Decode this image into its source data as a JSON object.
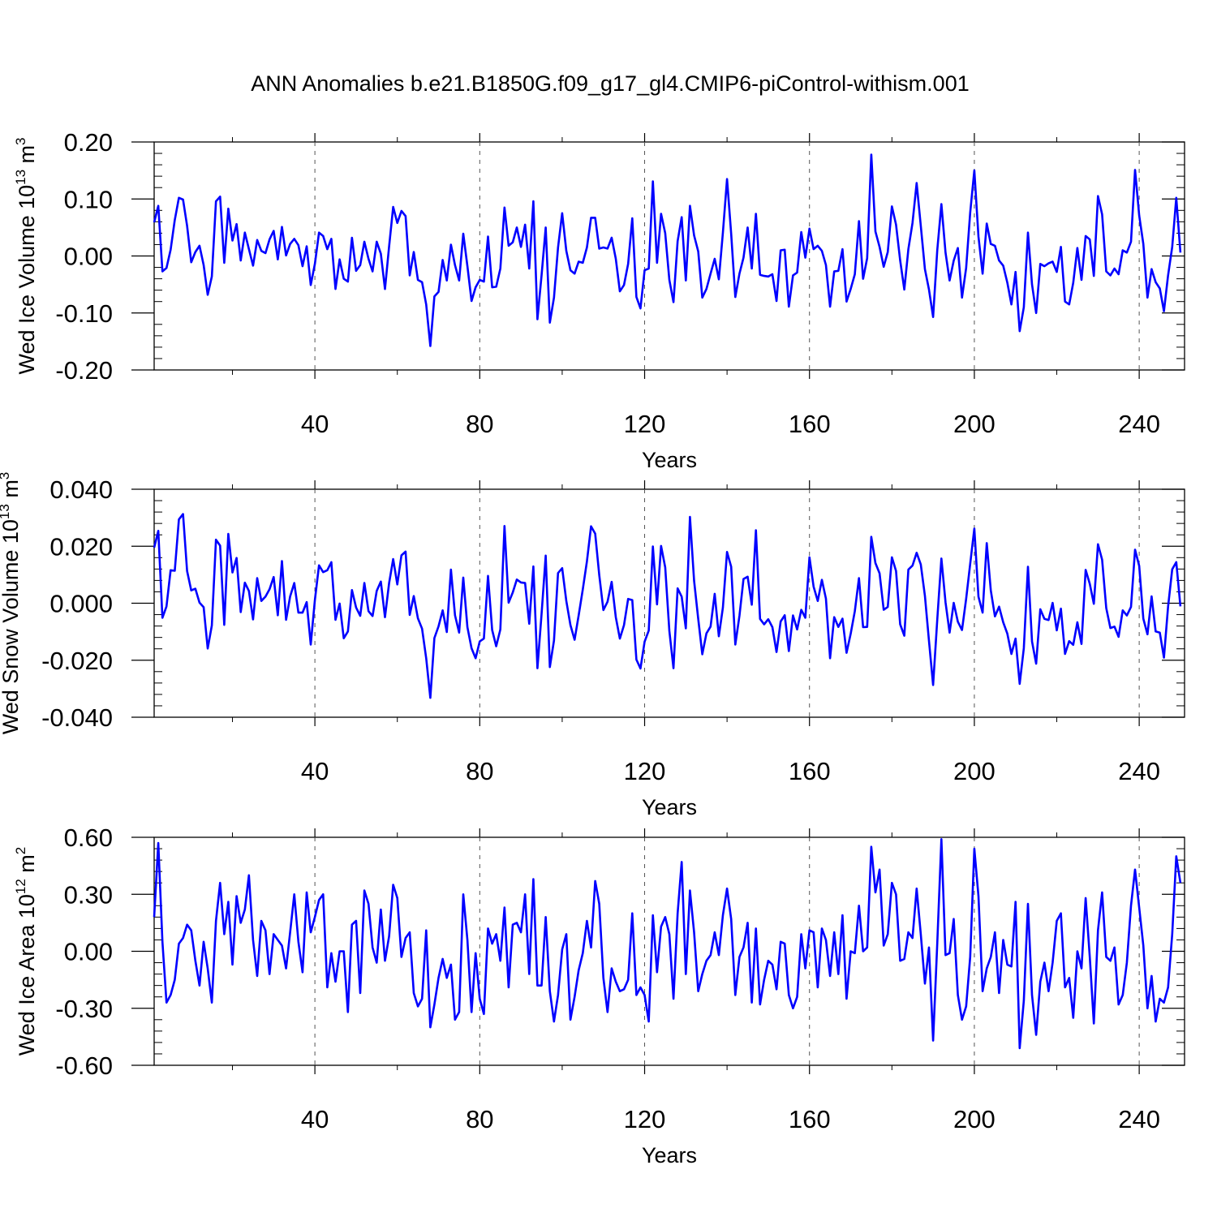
{
  "title": "ANN Anomalies b.e21.B1850G.f09_g17_gl4.CMIP6-piControl-withism.001",
  "line_color": "#0000ff",
  "chart_data": [
    {
      "type": "line",
      "ylabel": "Wed Ice Volume 10",
      "ylabel_exp": "13",
      "ylabel_unit": "m",
      "ylabel_unit_exp": "3",
      "xlabel": "Years",
      "xlim": [
        1,
        251
      ],
      "ylim": [
        -0.2,
        0.2
      ],
      "xticks": [
        40,
        80,
        120,
        160,
        200,
        240
      ],
      "yticks": [
        -0.2,
        -0.1,
        0.0,
        0.1,
        0.2
      ],
      "ytick_labels": [
        "-0.20",
        "-0.10",
        "0.00",
        "0.10",
        "0.20"
      ],
      "series": [
        {
          "values": [
            0.059,
            0.088,
            -0.027,
            -0.021,
            0.011,
            0.063,
            0.102,
            0.099,
            0.053,
            -0.011,
            0.007,
            0.018,
            -0.016,
            -0.068,
            -0.036,
            0.096,
            0.104,
            -0.012,
            0.083,
            0.027,
            0.056,
            -0.008,
            0.041,
            0.012,
            -0.017,
            0.028,
            0.009,
            0.005,
            0.029,
            0.044,
            -0.006,
            0.051,
            0.001,
            0.021,
            0.03,
            0.019,
            -0.018,
            0.017,
            -0.051,
            -0.014,
            0.041,
            0.035,
            0.012,
            0.03,
            -0.058,
            -0.006,
            -0.04,
            -0.045,
            0.032,
            -0.026,
            -0.016,
            0.025,
            -0.005,
            -0.027,
            0.025,
            0.004,
            -0.058,
            0.017,
            0.086,
            0.058,
            0.079,
            0.07,
            -0.034,
            0.007,
            -0.042,
            -0.046,
            -0.085,
            -0.158,
            -0.071,
            -0.063,
            -0.007,
            -0.043,
            0.02,
            -0.016,
            -0.043,
            0.039,
            -0.018,
            -0.079,
            -0.055,
            -0.042,
            -0.045,
            0.034,
            -0.055,
            -0.054,
            -0.022,
            0.085,
            0.018,
            0.024,
            0.05,
            0.016,
            0.055,
            -0.022,
            0.096,
            -0.111,
            -0.034,
            0.05,
            -0.117,
            -0.073,
            0.015,
            0.075,
            0.009,
            -0.025,
            -0.031,
            -0.01,
            -0.012,
            0.015,
            0.067,
            0.067,
            0.013,
            0.015,
            0.013,
            0.032,
            -0.005,
            -0.062,
            -0.051,
            -0.014,
            0.066,
            -0.072,
            -0.092,
            -0.025,
            -0.022,
            0.131,
            -0.012,
            0.074,
            0.04,
            -0.042,
            -0.081,
            0.026,
            0.068,
            -0.043,
            0.088,
            0.036,
            0.008,
            -0.073,
            -0.058,
            -0.031,
            -0.005,
            -0.041,
            0.041,
            0.135,
            0.039,
            -0.072,
            -0.031,
            -0.003,
            0.05,
            -0.022,
            0.074,
            -0.033,
            -0.035,
            -0.036,
            -0.032,
            -0.079,
            0.01,
            0.011,
            -0.089,
            -0.034,
            -0.029,
            0.042,
            -0.003,
            0.048,
            0.012,
            0.018,
            0.009,
            -0.016,
            -0.089,
            -0.027,
            -0.026,
            0.012,
            -0.08,
            -0.058,
            -0.032,
            0.061,
            -0.04,
            -0.004,
            0.178,
            0.043,
            0.016,
            -0.019,
            0.007,
            0.087,
            0.055,
            -0.008,
            -0.059,
            0.012,
            0.058,
            0.128,
            0.053,
            -0.023,
            -0.059,
            -0.107,
            0.01,
            0.091,
            0.006,
            -0.043,
            -0.008,
            0.014,
            -0.073,
            -0.021,
            0.076,
            0.15,
            0.034,
            -0.031,
            0.057,
            0.021,
            0.018,
            -0.008,
            -0.017,
            -0.047,
            -0.085,
            -0.028,
            -0.132,
            -0.09,
            0.041,
            -0.05,
            -0.1,
            -0.014,
            -0.018,
            -0.013,
            -0.01,
            -0.028,
            0.016,
            -0.08,
            -0.085,
            -0.047,
            0.014,
            -0.042,
            0.035,
            0.029,
            -0.035,
            0.105,
            0.073,
            -0.027,
            -0.034,
            -0.022,
            -0.032,
            0.01,
            0.006,
            0.025,
            0.151,
            0.071,
            0.021,
            -0.073,
            -0.023,
            -0.046,
            -0.057,
            -0.097,
            -0.034,
            0.016,
            0.102,
            0.006
          ]
        }
      ]
    },
    {
      "type": "line",
      "ylabel": "Wed Snow Volume 10",
      "ylabel_exp": "13",
      "ylabel_unit": "m",
      "ylabel_unit_exp": "3",
      "xlabel": "Years",
      "xlim": [
        1,
        251
      ],
      "ylim": [
        -0.04,
        0.04
      ],
      "xticks": [
        40,
        80,
        120,
        160,
        200,
        240
      ],
      "yticks": [
        -0.04,
        -0.02,
        0.0,
        0.02,
        0.04
      ],
      "ytick_labels": [
        "-0.040",
        "-0.020",
        "0.000",
        "0.020",
        "0.040"
      ],
      "series": [
        {
          "values": [
            0.0195,
            0.0254,
            -0.0051,
            -0.0011,
            0.0116,
            0.0114,
            0.0294,
            0.0313,
            0.0113,
            0.0045,
            0.0051,
            0.0002,
            -0.0014,
            -0.0159,
            -0.0078,
            0.0223,
            0.0202,
            -0.0076,
            0.0243,
            0.0108,
            0.0159,
            -0.0031,
            0.0072,
            0.0043,
            -0.0057,
            0.0088,
            0.0008,
            0.0023,
            0.0049,
            0.0092,
            -0.0042,
            0.0148,
            -0.0058,
            0.0024,
            0.0071,
            -0.0033,
            -0.0033,
            0.0004,
            -0.0145,
            0.0011,
            0.0133,
            0.0109,
            0.0116,
            0.0144,
            -0.0058,
            -0.0001,
            -0.0123,
            -0.0099,
            0.0046,
            -0.0015,
            -0.0044,
            0.0071,
            -0.0028,
            -0.0045,
            0.0043,
            0.0076,
            -0.0049,
            0.0071,
            0.0155,
            0.0066,
            0.0168,
            0.0181,
            -0.0041,
            0.0025,
            -0.0053,
            -0.0089,
            -0.0193,
            -0.0332,
            -0.0122,
            -0.0081,
            -0.0025,
            -0.0101,
            0.0118,
            -0.0042,
            -0.0103,
            0.009,
            -0.0084,
            -0.0158,
            -0.0193,
            -0.0134,
            -0.0124,
            0.0096,
            -0.0094,
            -0.0151,
            -0.0092,
            0.0271,
            0.0002,
            0.0038,
            0.0083,
            0.0073,
            0.0071,
            -0.0072,
            0.0129,
            -0.0228,
            -0.0038,
            0.0167,
            -0.0224,
            -0.0131,
            0.0106,
            0.0123,
            0.0008,
            -0.0077,
            -0.0128,
            -0.0043,
            0.0048,
            0.0147,
            0.027,
            0.0244,
            0.0099,
            -0.0024,
            0.0005,
            0.0075,
            -0.0049,
            -0.0124,
            -0.0077,
            0.0015,
            0.0011,
            -0.0198,
            -0.0229,
            -0.0135,
            -0.0096,
            0.0199,
            -0.0004,
            0.0201,
            0.0126,
            -0.0097,
            -0.0228,
            0.0052,
            0.0023,
            -0.0088,
            0.0303,
            0.0079,
            -0.0055,
            -0.0179,
            -0.0106,
            -0.0082,
            0.0033,
            -0.0116,
            -0.0015,
            0.018,
            0.0128,
            -0.0145,
            -0.0044,
            0.0085,
            0.0093,
            -0.0005,
            0.0256,
            -0.0055,
            -0.0074,
            -0.0056,
            -0.0084,
            -0.0171,
            -0.0064,
            -0.0042,
            -0.0168,
            -0.0043,
            -0.0092,
            -0.0023,
            -0.0051,
            0.0161,
            0.0058,
            0.0008,
            0.0082,
            0.0016,
            -0.0193,
            -0.0049,
            -0.0083,
            -0.0054,
            -0.0174,
            -0.0107,
            -0.0028,
            0.0088,
            -0.0084,
            -0.0083,
            0.0233,
            0.0141,
            0.0105,
            -0.0023,
            -0.0013,
            0.0161,
            0.0113,
            -0.0074,
            -0.0114,
            0.0118,
            0.0132,
            0.0177,
            0.0136,
            0.0026,
            -0.0132,
            -0.0287,
            -0.0058,
            0.0157,
            0.0003,
            -0.0103,
            0.0001,
            -0.0065,
            -0.0094,
            0.0015,
            0.0138,
            0.0262,
            0.0023,
            -0.0033,
            0.0211,
            0.0045,
            -0.0046,
            -0.0012,
            -0.0067,
            -0.0107,
            -0.0178,
            -0.0124,
            -0.0283,
            -0.0158,
            0.0128,
            -0.0134,
            -0.0212,
            -0.0021,
            -0.0055,
            -0.0059,
            0.0001,
            -0.0095,
            -0.0019,
            -0.0178,
            -0.0133,
            -0.0146,
            -0.0067,
            -0.0143,
            0.0117,
            0.0068,
            -0.0002,
            0.0207,
            0.0153,
            -0.0017,
            -0.0087,
            -0.0082,
            -0.0118,
            -0.0025,
            -0.0043,
            -0.0013,
            0.0188,
            0.0131,
            -0.0054,
            -0.0109,
            0.0024,
            -0.0099,
            -0.0103,
            -0.0191,
            -0.0012,
            0.0119,
            0.0144,
            -0.0011
          ]
        }
      ]
    },
    {
      "type": "line",
      "ylabel": "Wed Ice Area 10",
      "ylabel_exp": "12",
      "ylabel_unit": "m",
      "ylabel_unit_exp": "2",
      "xlabel": "Years",
      "xlim": [
        1,
        251
      ],
      "ylim": [
        -0.6,
        0.6
      ],
      "xticks": [
        40,
        80,
        120,
        160,
        200,
        240
      ],
      "yticks": [
        -0.6,
        -0.3,
        0.0,
        0.3,
        0.6
      ],
      "ytick_labels": [
        "-0.60",
        "-0.30",
        "0.00",
        "0.30",
        "0.60"
      ],
      "series": [
        {
          "values": [
            0.18,
            0.57,
            0.05,
            -0.27,
            -0.23,
            -0.15,
            0.04,
            0.07,
            0.14,
            0.11,
            -0.05,
            -0.18,
            0.05,
            -0.09,
            -0.27,
            0.16,
            0.36,
            0.09,
            0.26,
            -0.07,
            0.29,
            0.15,
            0.22,
            0.4,
            0.06,
            -0.13,
            0.16,
            0.11,
            -0.12,
            0.09,
            0.06,
            0.03,
            -0.09,
            0.1,
            0.3,
            0.05,
            -0.11,
            0.31,
            0.1,
            0.18,
            0.27,
            0.3,
            -0.19,
            -0.01,
            -0.16,
            0.0,
            0.0,
            -0.32,
            0.14,
            0.16,
            -0.22,
            0.32,
            0.25,
            0.02,
            -0.06,
            0.22,
            -0.05,
            0.08,
            0.35,
            0.28,
            -0.03,
            0.07,
            0.1,
            -0.22,
            -0.29,
            -0.25,
            0.11,
            -0.4,
            -0.28,
            -0.14,
            -0.04,
            -0.14,
            -0.07,
            -0.36,
            -0.32,
            0.3,
            0.06,
            -0.32,
            -0.01,
            -0.25,
            -0.33,
            0.12,
            0.04,
            0.09,
            -0.05,
            0.23,
            -0.19,
            0.14,
            0.15,
            0.1,
            0.3,
            -0.12,
            0.38,
            -0.18,
            -0.18,
            0.18,
            -0.21,
            -0.37,
            -0.23,
            0.01,
            0.09,
            -0.36,
            -0.24,
            -0.1,
            -0.01,
            0.16,
            0.02,
            0.37,
            0.25,
            -0.14,
            -0.32,
            -0.09,
            -0.16,
            -0.21,
            -0.2,
            -0.15,
            0.2,
            -0.23,
            -0.19,
            -0.23,
            -0.37,
            0.19,
            -0.11,
            0.13,
            0.18,
            0.09,
            -0.25,
            0.2,
            0.47,
            -0.12,
            0.32,
            0.1,
            -0.21,
            -0.12,
            -0.05,
            -0.02,
            0.1,
            -0.02,
            0.19,
            0.33,
            0.17,
            -0.23,
            -0.03,
            0.02,
            0.15,
            -0.27,
            0.12,
            -0.28,
            -0.15,
            -0.05,
            -0.07,
            -0.2,
            0.05,
            0.04,
            -0.23,
            -0.3,
            -0.24,
            0.09,
            -0.09,
            0.11,
            0.1,
            -0.19,
            0.12,
            0.06,
            -0.13,
            0.1,
            -0.12,
            0.19,
            -0.25,
            0.0,
            -0.01,
            0.24,
            0.0,
            0.02,
            0.55,
            0.31,
            0.43,
            0.03,
            0.09,
            0.36,
            0.3,
            -0.05,
            -0.04,
            0.1,
            0.07,
            0.33,
            0.09,
            -0.17,
            0.02,
            -0.47,
            0.04,
            0.59,
            -0.02,
            -0.01,
            0.17,
            -0.23,
            -0.36,
            -0.29,
            -0.03,
            0.54,
            0.29,
            -0.21,
            -0.09,
            -0.03,
            0.1,
            -0.22,
            0.06,
            -0.07,
            -0.08,
            0.26,
            -0.51,
            -0.26,
            0.25,
            -0.23,
            -0.44,
            -0.16,
            -0.06,
            -0.21,
            -0.06,
            0.16,
            0.2,
            -0.19,
            -0.14,
            -0.35,
            0.0,
            -0.09,
            0.28,
            -0.03,
            -0.38,
            0.11,
            0.31,
            -0.03,
            -0.05,
            0.02,
            -0.28,
            -0.23,
            -0.06,
            0.24,
            0.43,
            0.23,
            0.03,
            -0.3,
            -0.13,
            -0.37,
            -0.25,
            -0.27,
            -0.19,
            0.09,
            0.5,
            0.36
          ]
        }
      ]
    }
  ]
}
